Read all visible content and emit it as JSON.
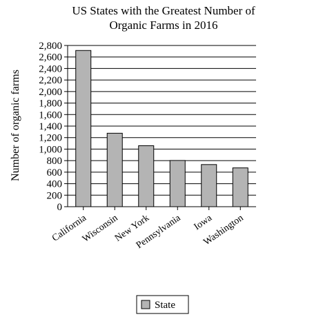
{
  "chart_data": {
    "type": "bar",
    "title_lines": [
      "US States with the Greatest Number of",
      "Organic Farms in 2016"
    ],
    "xlabel": "",
    "ylabel": "Number of organic farms",
    "categories": [
      "California",
      "Wisconsin",
      "New York",
      "Pennsylvania",
      "Iowa",
      "Washington"
    ],
    "series": [
      {
        "name": "State",
        "values": [
          2713,
          1276,
          1059,
          803,
          732,
          674
        ]
      }
    ],
    "ylim": [
      0,
      2800
    ],
    "yticks": [
      0,
      200,
      400,
      600,
      800,
      1000,
      1200,
      1400,
      1600,
      1800,
      2000,
      2200,
      2400,
      2600,
      2800
    ],
    "ytick_labels": [
      "0",
      "200",
      "400",
      "600",
      "800",
      "1,000",
      "1,200",
      "1,400",
      "1,600",
      "1,800",
      "2,000",
      "2,200",
      "2,400",
      "2,600",
      "2,800"
    ],
    "grid": true,
    "legend": {
      "position": "bottom",
      "entries": [
        "State"
      ]
    },
    "colors": {
      "bar": "#b4b4b4",
      "bar_stroke": "#000000",
      "grid": "#000000"
    }
  }
}
